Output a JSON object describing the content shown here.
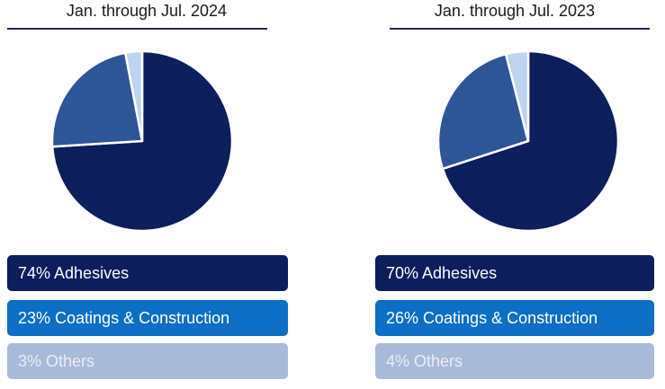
{
  "colors": {
    "adhesives": "#0d1e5c",
    "coatings_slice": "#2e5596",
    "others_slice": "#bdd3ee",
    "coatings_box": "#0d6ec6",
    "others_box": "#a9bad9",
    "text_light": "#ffffff",
    "text_others": "#e8edf6"
  },
  "chart_data": [
    {
      "type": "pie",
      "title": "Jan. through Jul. 2024",
      "slices": [
        {
          "label": "74% Adhesives",
          "value": 74
        },
        {
          "label": "23% Coatings & Construction",
          "value": 23
        },
        {
          "label": "3% Others",
          "value": 3
        }
      ]
    },
    {
      "type": "pie",
      "title": "Jan. through Jul. 2023",
      "slices": [
        {
          "label": "70% Adhesives",
          "value": 70
        },
        {
          "label": "26% Coatings & Construction",
          "value": 26
        },
        {
          "label": "4% Others",
          "value": 4
        }
      ]
    }
  ]
}
